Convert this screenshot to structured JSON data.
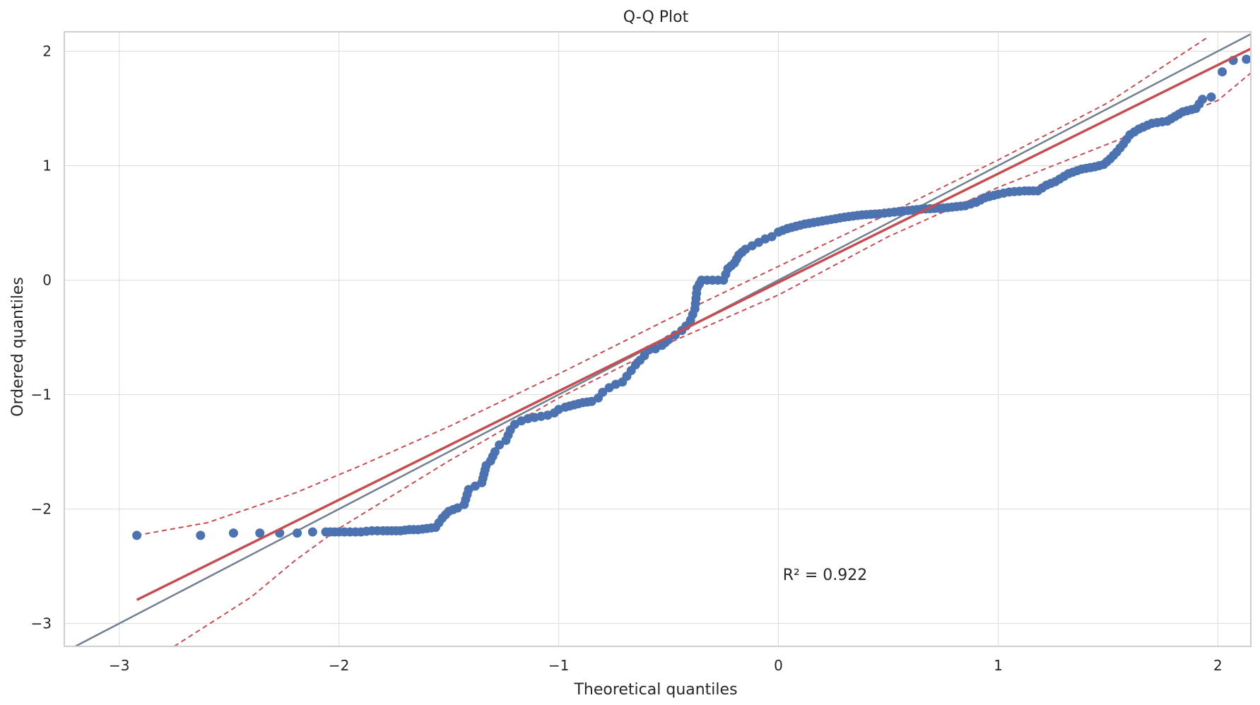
{
  "chart_data": {
    "type": "scatter",
    "title": "Q-Q Plot",
    "xlabel": "Theoretical quantiles",
    "ylabel": "Ordered quantiles",
    "xlim": [
      -3.25,
      2.15
    ],
    "ylim": [
      -3.2,
      2.17
    ],
    "xticks": [
      -3,
      -2,
      -1,
      0,
      1,
      2
    ],
    "xtick_labels": [
      "−3",
      "−2",
      "−1",
      "0",
      "1",
      "2"
    ],
    "yticks": [
      -3,
      -2,
      -1,
      0,
      1,
      2
    ],
    "ytick_labels": [
      "−3",
      "−2",
      "−1",
      "0",
      "1",
      "2"
    ],
    "grid": true,
    "annotation": "R² = 0.922",
    "annotation_xy": [
      0.02,
      -2.62
    ],
    "colors": {
      "points": "#4c72b0",
      "fit_line": "#c44e52",
      "reference_line": "#708090",
      "confidence_band": "#c44e52"
    },
    "reference_line": {
      "slope": 1,
      "intercept": 0
    },
    "fit_line": {
      "slope": 0.95,
      "intercept": -0.02,
      "x_range": [
        -2.92,
        2.15
      ]
    },
    "confidence_band": {
      "upper": [
        [
          -2.92,
          -2.23
        ],
        [
          -2.6,
          -2.12
        ],
        [
          -2.2,
          -1.86
        ],
        [
          -1.9,
          -1.62
        ],
        [
          -1.5,
          -1.28
        ],
        [
          -1.0,
          -0.82
        ],
        [
          -0.5,
          -0.34
        ],
        [
          0.0,
          0.12
        ],
        [
          0.5,
          0.58
        ],
        [
          1.0,
          1.05
        ],
        [
          1.5,
          1.55
        ],
        [
          1.96,
          2.13
        ]
      ],
      "lower": [
        [
          -2.75,
          -3.2
        ],
        [
          -2.4,
          -2.77
        ],
        [
          -2.2,
          -2.45
        ],
        [
          -2.0,
          -2.17
        ],
        [
          -1.5,
          -1.58
        ],
        [
          -1.0,
          -1.03
        ],
        [
          -0.5,
          -0.55
        ],
        [
          0.0,
          -0.13
        ],
        [
          0.5,
          0.38
        ],
        [
          1.0,
          0.81
        ],
        [
          1.5,
          1.19
        ],
        [
          2.0,
          1.57
        ],
        [
          2.15,
          1.81
        ]
      ]
    },
    "series": [
      {
        "points": [
          [
            -2.92,
            -2.23
          ],
          [
            -2.63,
            -2.23
          ],
          [
            -2.48,
            -2.21
          ],
          [
            -2.36,
            -2.21
          ],
          [
            -2.27,
            -2.21
          ],
          [
            -2.19,
            -2.21
          ],
          [
            -2.12,
            -2.2
          ],
          [
            -2.06,
            -2.2
          ],
          [
            -2.0,
            -2.2
          ],
          [
            -1.95,
            -2.2
          ],
          [
            -1.9,
            -2.2
          ],
          [
            -1.85,
            -2.19
          ],
          [
            -1.8,
            -2.19
          ],
          [
            -1.76,
            -2.19
          ],
          [
            -1.72,
            -2.19
          ],
          [
            -1.68,
            -2.18
          ],
          [
            -1.64,
            -2.18
          ],
          [
            -1.6,
            -2.17
          ],
          [
            -1.56,
            -2.16
          ],
          [
            -1.53,
            -2.08
          ],
          [
            -1.5,
            -2.02
          ],
          [
            -1.46,
            -1.99
          ],
          [
            -1.43,
            -1.96
          ],
          [
            -1.41,
            -1.83
          ],
          [
            -1.38,
            -1.8
          ],
          [
            -1.35,
            -1.77
          ],
          [
            -1.33,
            -1.62
          ],
          [
            -1.31,
            -1.58
          ],
          [
            -1.29,
            -1.5
          ],
          [
            -1.27,
            -1.44
          ],
          [
            -1.24,
            -1.4
          ],
          [
            -1.22,
            -1.31
          ],
          [
            -1.2,
            -1.26
          ],
          [
            -1.17,
            -1.23
          ],
          [
            -1.14,
            -1.21
          ],
          [
            -1.11,
            -1.2
          ],
          [
            -1.08,
            -1.19
          ],
          [
            -1.05,
            -1.18
          ],
          [
            -1.02,
            -1.16
          ],
          [
            -1.0,
            -1.13
          ],
          [
            -0.97,
            -1.11
          ],
          [
            -0.93,
            -1.09
          ],
          [
            -0.89,
            -1.07
          ],
          [
            -0.85,
            -1.06
          ],
          [
            -0.82,
            -1.03
          ],
          [
            -0.8,
            -0.98
          ],
          [
            -0.77,
            -0.94
          ],
          [
            -0.74,
            -0.91
          ],
          [
            -0.71,
            -0.89
          ],
          [
            -0.69,
            -0.84
          ],
          [
            -0.67,
            -0.79
          ],
          [
            -0.65,
            -0.74
          ],
          [
            -0.63,
            -0.7
          ],
          [
            -0.61,
            -0.66
          ],
          [
            -0.59,
            -0.61
          ],
          [
            -0.56,
            -0.6
          ],
          [
            -0.53,
            -0.57
          ],
          [
            -0.5,
            -0.52
          ],
          [
            -0.47,
            -0.48
          ],
          [
            -0.44,
            -0.44
          ],
          [
            -0.42,
            -0.4
          ],
          [
            -0.4,
            -0.35
          ],
          [
            -0.39,
            -0.3
          ],
          [
            -0.38,
            -0.25
          ],
          [
            -0.37,
            -0.07
          ],
          [
            -0.35,
            0.0
          ],
          [
            -0.3,
            0.0
          ],
          [
            -0.25,
            0.0
          ],
          [
            -0.23,
            0.1
          ],
          [
            -0.2,
            0.15
          ],
          [
            -0.18,
            0.22
          ],
          [
            -0.15,
            0.27
          ],
          [
            -0.12,
            0.3
          ],
          [
            -0.09,
            0.33
          ],
          [
            -0.06,
            0.36
          ],
          [
            -0.03,
            0.38
          ],
          [
            0.0,
            0.42
          ],
          [
            0.04,
            0.45
          ],
          [
            0.08,
            0.47
          ],
          [
            0.12,
            0.49
          ],
          [
            0.18,
            0.51
          ],
          [
            0.24,
            0.53
          ],
          [
            0.3,
            0.55
          ],
          [
            0.38,
            0.57
          ],
          [
            0.46,
            0.58
          ],
          [
            0.55,
            0.6
          ],
          [
            0.65,
            0.62
          ],
          [
            0.75,
            0.63
          ],
          [
            0.85,
            0.65
          ],
          [
            0.9,
            0.68
          ],
          [
            0.94,
            0.72
          ],
          [
            1.0,
            0.75
          ],
          [
            1.05,
            0.77
          ],
          [
            1.12,
            0.78
          ],
          [
            1.18,
            0.78
          ],
          [
            1.22,
            0.83
          ],
          [
            1.26,
            0.86
          ],
          [
            1.32,
            0.93
          ],
          [
            1.38,
            0.97
          ],
          [
            1.44,
            0.99
          ],
          [
            1.48,
            1.01
          ],
          [
            1.51,
            1.06
          ],
          [
            1.54,
            1.12
          ],
          [
            1.57,
            1.19
          ],
          [
            1.6,
            1.27
          ],
          [
            1.64,
            1.32
          ],
          [
            1.7,
            1.37
          ],
          [
            1.77,
            1.39
          ],
          [
            1.84,
            1.47
          ],
          [
            1.9,
            1.5
          ],
          [
            1.93,
            1.58
          ],
          [
            1.97,
            1.6
          ],
          [
            2.02,
            1.82
          ],
          [
            2.07,
            1.92
          ],
          [
            2.13,
            1.93
          ]
        ]
      }
    ]
  }
}
